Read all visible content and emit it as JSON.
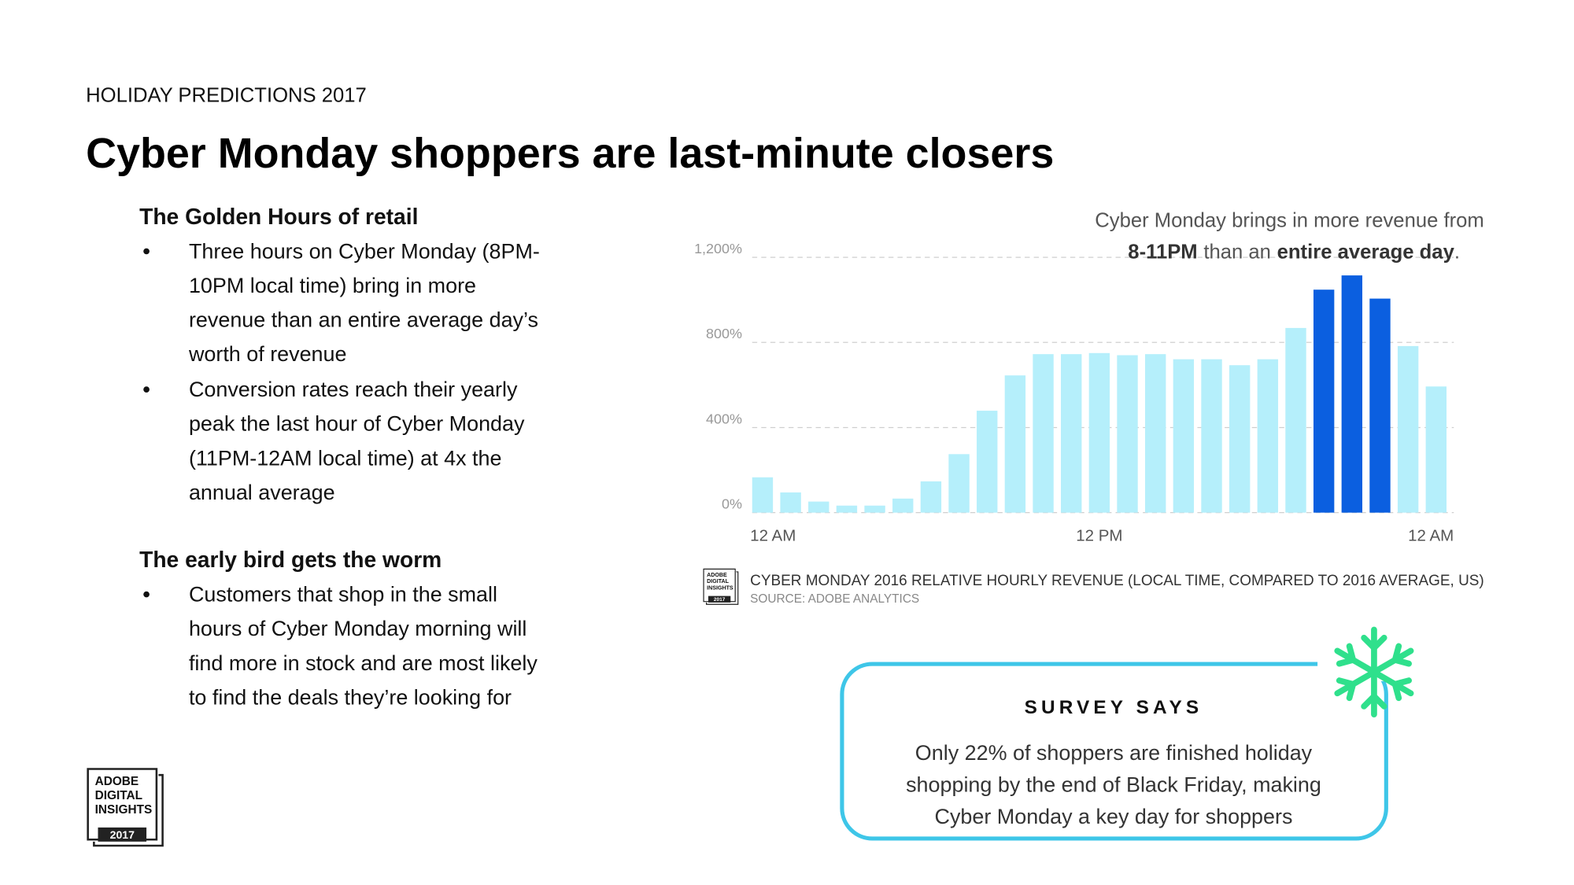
{
  "header": {
    "eyebrow": "HOLIDAY PREDICTIONS 2017",
    "title": "Cyber Monday shoppers are last-minute closers"
  },
  "sections": [
    {
      "heading": "The Golden Hours of retail",
      "bullets": [
        [
          "Three hours on Cyber Monday (8PM-",
          "10PM local time) bring in more",
          "revenue than an entire average day’s",
          "worth of revenue"
        ],
        [
          "Conversion rates reach their yearly",
          "peak the last hour of Cyber Monday",
          "(11PM-12AM local time) at 4x the",
          "annual average"
        ]
      ]
    },
    {
      "heading": "The early bird gets the worm",
      "bullets": [
        [
          "Customers that shop in the small",
          "hours of Cyber Monday morning will",
          "find more in stock and are most likely",
          "to find the deals they’re looking for"
        ]
      ]
    }
  ],
  "logo": {
    "lines": [
      "ADOBE",
      "DIGITAL",
      "INSIGHTS"
    ],
    "year": "2017"
  },
  "chart_data": {
    "type": "bar",
    "annotation": {
      "line1": "Cyber Monday brings in more revenue from",
      "bold1": "8-11PM",
      "mid": "than an",
      "bold2": "entire average day",
      "end": "."
    },
    "categories": [
      "12 AM",
      null,
      null,
      null,
      null,
      null,
      null,
      null,
      null,
      null,
      null,
      null,
      "12 PM",
      null,
      null,
      null,
      null,
      null,
      null,
      null,
      null,
      null,
      null,
      null,
      "12 AM"
    ],
    "values": [
      166,
      95,
      52,
      33,
      33,
      66,
      147,
      275,
      479,
      645,
      745,
      745,
      750,
      740,
      745,
      721,
      721,
      693,
      721,
      868,
      1048,
      1115,
      1006,
      783,
      593
    ],
    "colors": [
      "#b5effb",
      "#b5effb",
      "#b5effb",
      "#b5effb",
      "#b5effb",
      "#b5effb",
      "#b5effb",
      "#b5effb",
      "#b5effb",
      "#b5effb",
      "#b5effb",
      "#b5effb",
      "#b5effb",
      "#b5effb",
      "#b5effb",
      "#b5effb",
      "#b5effb",
      "#b5effb",
      "#b5effb",
      "#b5effb",
      "#0b5fe0",
      "#0b5fe0",
      "#0b5fe0",
      "#b5effb",
      "#b5effb"
    ],
    "ylim": [
      0,
      1200
    ],
    "yticks": [
      {
        "value": 0,
        "label": "0%"
      },
      {
        "value": 400,
        "label": "400%"
      },
      {
        "value": 800,
        "label": "800%"
      },
      {
        "value": 1200,
        "label": "1,200%"
      }
    ],
    "grid": true,
    "caption": "CYBER MONDAY 2016 RELATIVE HOURLY REVENUE (LOCAL TIME, COMPARED TO 2016 AVERAGE, US)",
    "source": "SOURCE: ADOBE ANALYTICS"
  },
  "survey": {
    "heading": "SURVEY SAYS",
    "lines": [
      "Only 22% of shoppers are finished holiday",
      "shopping by the end of Black Friday, making",
      "Cyber Monday a key day for shoppers"
    ]
  }
}
